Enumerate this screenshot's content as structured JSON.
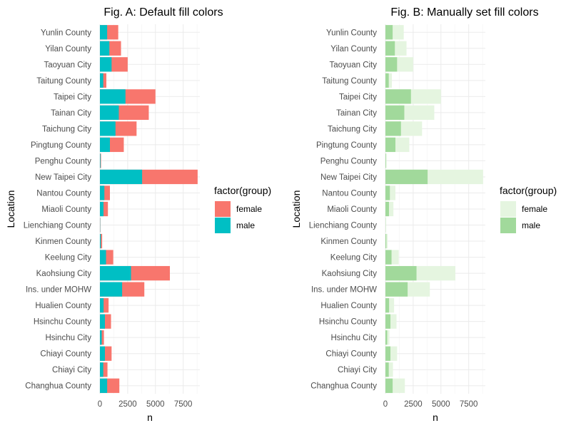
{
  "chart_data": [
    {
      "type": "bar",
      "orientation": "horizontal",
      "stacked": true,
      "title": "Fig. A: Default fill colors",
      "xlabel": "n",
      "ylabel": "Location",
      "xlim": [
        0,
        9000
      ],
      "xticks": [
        "0",
        "2500",
        "5000",
        "7500"
      ],
      "grid": true,
      "legend": {
        "title": "factor(group)",
        "position": "right"
      },
      "categories": [
        "Yunlin County",
        "Yilan County",
        "Taoyuan City",
        "Taitung County",
        "Taipei City",
        "Tainan City",
        "Taichung City",
        "Pingtung County",
        "Penghu County",
        "New Taipei City",
        "Nantou County",
        "Miaoli County",
        "Lienchiang County",
        "Kinmen County",
        "Keelung City",
        "Kaohsiung City",
        "Ins. under MOHW",
        "Hualien County",
        "Hsinchu County",
        "Hsinchu City",
        "Chiayi County",
        "Chiayi City",
        "Changhua County"
      ],
      "series": [
        {
          "name": "female",
          "color": "#F8766D",
          "values": [
            1000,
            1050,
            1450,
            280,
            2700,
            2700,
            1900,
            1250,
            50,
            5000,
            500,
            400,
            20,
            120,
            650,
            3500,
            2000,
            450,
            550,
            200,
            600,
            380,
            1100
          ]
        },
        {
          "name": "male",
          "color": "#00BFC4",
          "values": [
            650,
            850,
            1050,
            300,
            2300,
            1700,
            1400,
            900,
            50,
            3800,
            400,
            320,
            20,
            80,
            550,
            2800,
            2000,
            330,
            450,
            160,
            450,
            300,
            650
          ]
        }
      ]
    },
    {
      "type": "bar",
      "orientation": "horizontal",
      "stacked": true,
      "title": "Fig. B: Manually set fill colors",
      "xlabel": "n",
      "ylabel": "Location",
      "xlim": [
        0,
        9000
      ],
      "xticks": [
        "0",
        "2500",
        "5000",
        "7500"
      ],
      "grid": true,
      "legend": {
        "title": "factor(group)",
        "position": "right"
      },
      "categories": [
        "Yunlin County",
        "Yilan County",
        "Taoyuan City",
        "Taitung County",
        "Taipei City",
        "Tainan City",
        "Taichung City",
        "Pingtung County",
        "Penghu County",
        "New Taipei City",
        "Nantou County",
        "Miaoli County",
        "Lienchiang County",
        "Kinmen County",
        "Keelung City",
        "Kaohsiung City",
        "Ins. under MOHW",
        "Hualien County",
        "Hsinchu County",
        "Hsinchu City",
        "Chiayi County",
        "Chiayi City",
        "Changhua County"
      ],
      "series": [
        {
          "name": "female",
          "color": "#E5F5E0",
          "values": [
            1000,
            1050,
            1450,
            280,
            2700,
            2700,
            1900,
            1250,
            50,
            5000,
            500,
            400,
            20,
            120,
            650,
            3500,
            2000,
            450,
            550,
            200,
            600,
            380,
            1100
          ]
        },
        {
          "name": "male",
          "color": "#A1D99B",
          "values": [
            650,
            850,
            1050,
            300,
            2300,
            1700,
            1400,
            900,
            50,
            3800,
            400,
            320,
            20,
            80,
            550,
            2800,
            2000,
            330,
            450,
            160,
            450,
            300,
            650
          ]
        }
      ]
    }
  ]
}
